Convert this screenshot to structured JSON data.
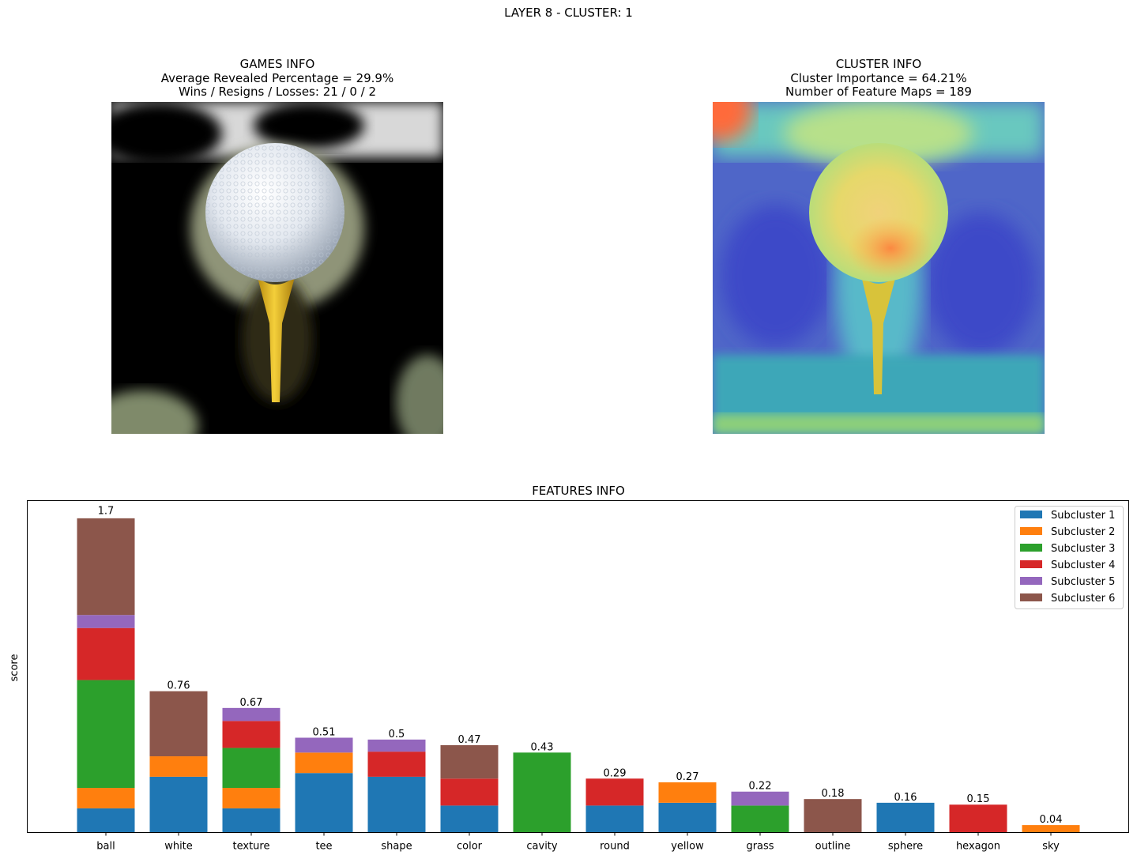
{
  "title": "LAYER 8 - CLUSTER: 1",
  "games_info": {
    "heading": "GAMES INFO",
    "avg_revealed": "Average Revealed Percentage = 29.9%",
    "record": "Wins / Resigns / Losses: 21 / 0 / 2",
    "image_subject": "golf ball on yellow tee, masked revealed regions"
  },
  "cluster_info": {
    "heading": "CLUSTER INFO",
    "importance": "Cluster Importance = 64.21%",
    "feature_maps": "Number of Feature Maps = 189",
    "image_subject": "golf ball on yellow tee with heatmap overlay"
  },
  "colors": {
    "subcluster_1": "#1f77b4",
    "subcluster_2": "#ff7f0e",
    "subcluster_3": "#2ca02c",
    "subcluster_4": "#d62728",
    "subcluster_5": "#9467bd",
    "subcluster_6": "#8c564b"
  },
  "chart_data": {
    "type": "bar",
    "stacked": true,
    "title": "FEATURES INFO",
    "xlabel": "",
    "ylabel": "score",
    "ylim": [
      0,
      1.785
    ],
    "y_ticks_shown": false,
    "legend_placement": "top-right",
    "categories": [
      "ball",
      "white",
      "texture",
      "tee",
      "shape",
      "color",
      "cavity",
      "round",
      "yellow",
      "grass",
      "outline",
      "sphere",
      "hexagon",
      "sky"
    ],
    "totals": [
      1.7,
      0.76,
      0.67,
      0.51,
      0.5,
      0.47,
      0.43,
      0.29,
      0.27,
      0.22,
      0.18,
      0.16,
      0.15,
      0.04
    ],
    "total_labels": [
      "1.7",
      "0.76",
      "0.67",
      "0.51",
      "0.5",
      "0.47",
      "0.43",
      "0.29",
      "0.27",
      "0.22",
      "0.18",
      "0.16",
      "0.15",
      "0.04"
    ],
    "series": [
      {
        "name": "Subcluster 1",
        "color": "#1f77b4",
        "values": [
          0.13,
          0.3,
          0.13,
          0.32,
          0.3,
          0.145,
          0,
          0.145,
          0.16,
          0,
          0,
          0.16,
          0,
          0
        ]
      },
      {
        "name": "Subcluster 2",
        "color": "#ff7f0e",
        "values": [
          0.11,
          0.11,
          0.11,
          0.11,
          0,
          0,
          0,
          0,
          0.11,
          0,
          0,
          0,
          0,
          0.04
        ]
      },
      {
        "name": "Subcluster 3",
        "color": "#2ca02c",
        "values": [
          0.58,
          0,
          0.215,
          0,
          0,
          0,
          0.43,
          0,
          0,
          0.145,
          0,
          0,
          0,
          0
        ]
      },
      {
        "name": "Subcluster 4",
        "color": "#d62728",
        "values": [
          0.28,
          0,
          0.145,
          0,
          0.135,
          0.145,
          0,
          0.145,
          0,
          0,
          0,
          0,
          0.15,
          0
        ]
      },
      {
        "name": "Subcluster 5",
        "color": "#9467bd",
        "values": [
          0.07,
          0,
          0.07,
          0.08,
          0.065,
          0,
          0,
          0,
          0,
          0.075,
          0,
          0,
          0,
          0
        ]
      },
      {
        "name": "Subcluster 6",
        "color": "#8c564b",
        "values": [
          0.52,
          0.35,
          0,
          0,
          0,
          0.18,
          0,
          0,
          0,
          0,
          0.18,
          0,
          0,
          0
        ]
      }
    ]
  }
}
